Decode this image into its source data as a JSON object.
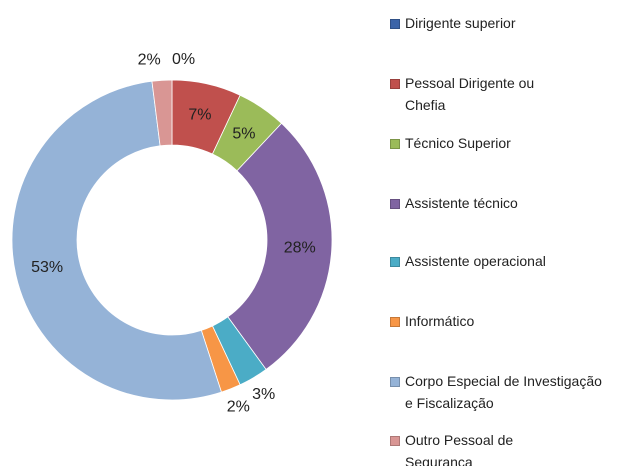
{
  "chart_data": {
    "type": "donut",
    "series": [
      {
        "name": "Dirigente superior",
        "color": "#3b64a8"
      },
      {
        "name": "Pessoal Dirigente ou Chefia",
        "color": "#c0504d"
      },
      {
        "name": "Técnico Superior",
        "color": "#9bbb59"
      },
      {
        "name": "Assistente técnico",
        "color": "#8064a2"
      },
      {
        "name": "Assistente operacional",
        "color": "#4bacc6"
      },
      {
        "name": "Informático",
        "color": "#f79646"
      },
      {
        "name": "Corpo Especial de Investigação e Fiscalização",
        "color": "#95b3d7"
      },
      {
        "name": "Outro Pessoal de Segurança",
        "color": "#d99694"
      }
    ],
    "values": [
      0,
      7,
      5,
      28,
      3,
      2,
      53,
      2
    ],
    "value_labels": [
      "0%",
      "7%",
      "5%",
      "28%",
      "3%",
      "2%",
      "53%",
      "2%"
    ]
  }
}
